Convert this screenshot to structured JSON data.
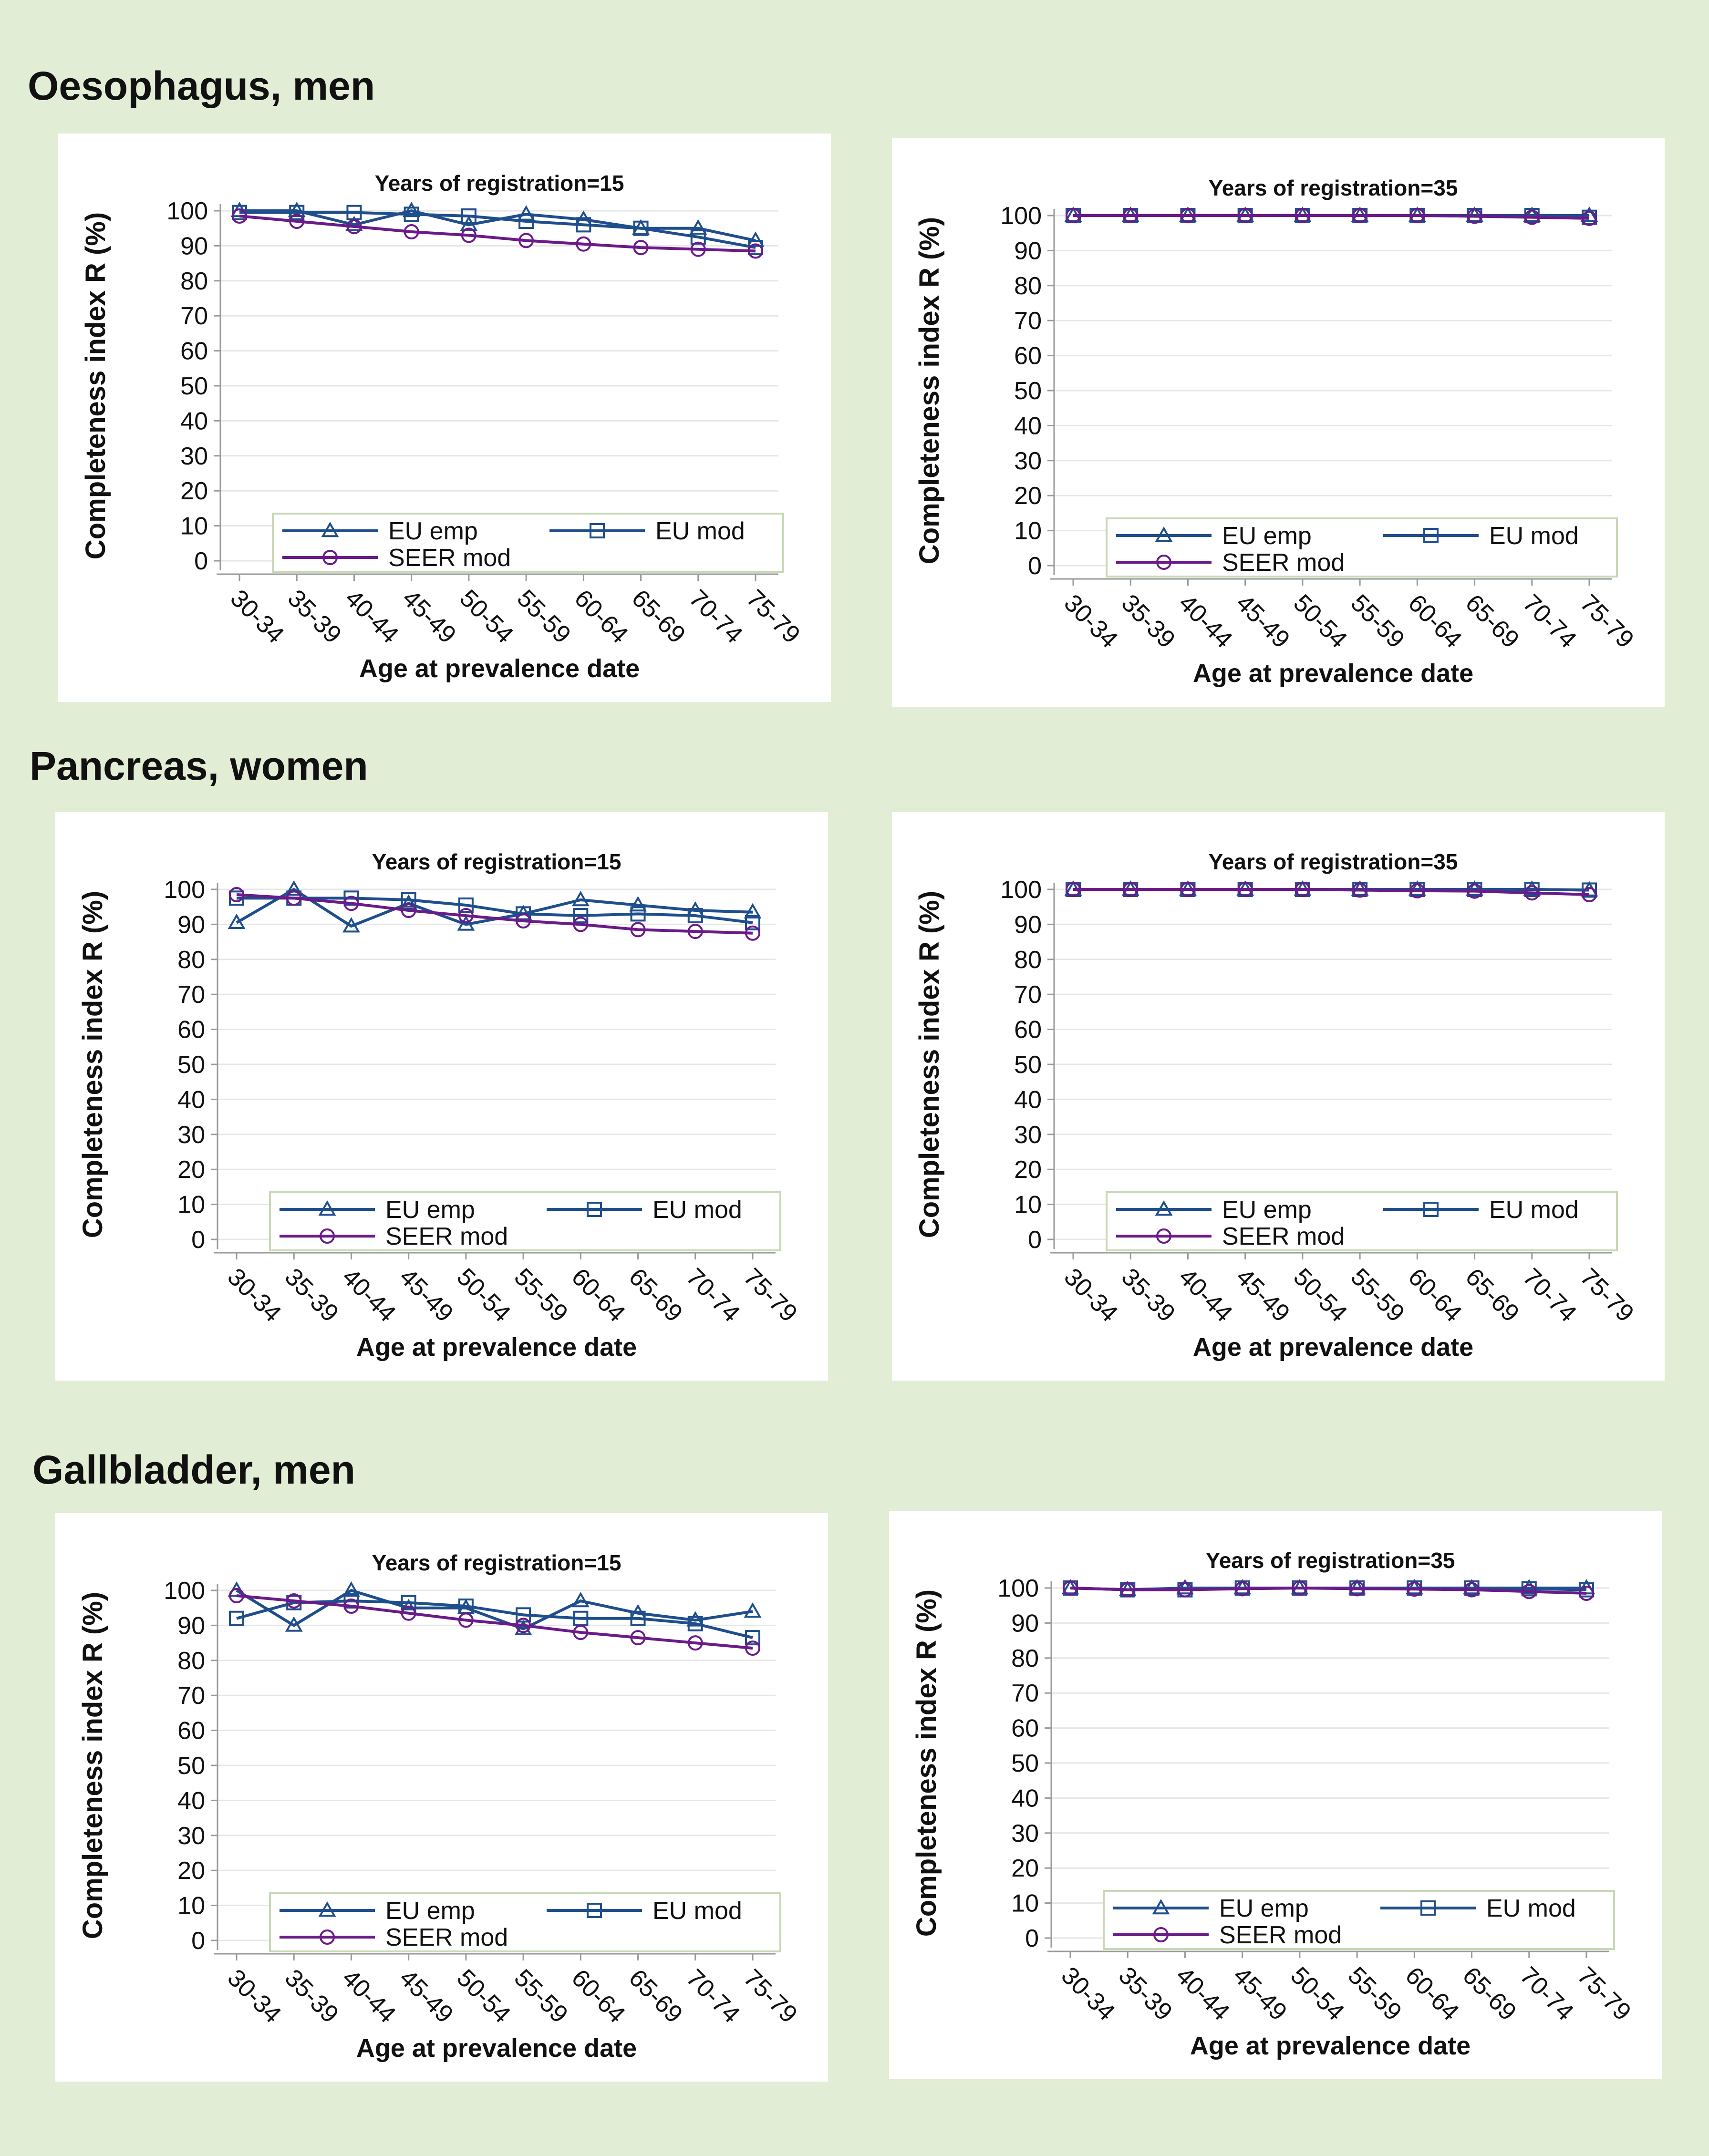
{
  "sections": [
    {
      "title": "Oesophagus, men"
    },
    {
      "title": "Pancreas, women"
    },
    {
      "title": "Gallbladder, men"
    }
  ],
  "colors": {
    "eu_emp": "#1f4e8c",
    "eu_mod": "#1f4e8c",
    "seer_mod": "#6b1a8a",
    "grid": "#e6e6e6",
    "axis": "#9a9a9a",
    "legend_border": "#c8d8b4"
  },
  "chart_data": [
    {
      "type": "line",
      "section": "Oesophagus, men",
      "title": "Years of registration=15",
      "xlabel": "Age at prevalence date",
      "ylabel": "Completeness index R (%)",
      "ylim": [
        0,
        100
      ],
      "yticks": [
        0,
        10,
        20,
        30,
        40,
        50,
        60,
        70,
        80,
        90,
        100
      ],
      "categories": [
        "30-34",
        "35-39",
        "40-44",
        "45-49",
        "50-54",
        "55-59",
        "60-64",
        "65-69",
        "70-74",
        "75-79"
      ],
      "legend": [
        "EU emp",
        "EU mod",
        "SEER mod"
      ],
      "series": [
        {
          "name": "EU emp",
          "marker": "triangle",
          "values": [
            100,
            100,
            96,
            100,
            96,
            99,
            97.5,
            95,
            95,
            91.5
          ]
        },
        {
          "name": "EU mod",
          "marker": "square",
          "values": [
            99.5,
            99.5,
            99.5,
            99,
            98.5,
            97,
            96,
            95,
            92.5,
            89.5
          ]
        },
        {
          "name": "SEER mod",
          "marker": "circle",
          "values": [
            98.5,
            97,
            95.5,
            94,
            93,
            91.5,
            90.5,
            89.5,
            89,
            88.5
          ]
        }
      ]
    },
    {
      "type": "line",
      "section": "Oesophagus, men",
      "title": "Years of registration=35",
      "xlabel": "Age at prevalence date",
      "ylabel": "Completeness index R (%)",
      "ylim": [
        0,
        100
      ],
      "yticks": [
        0,
        10,
        20,
        30,
        40,
        50,
        60,
        70,
        80,
        90,
        100
      ],
      "categories": [
        "30-34",
        "35-39",
        "40-44",
        "45-49",
        "50-54",
        "55-59",
        "60-64",
        "65-69",
        "70-74",
        "75-79"
      ],
      "legend": [
        "EU emp",
        "EU mod",
        "SEER mod"
      ],
      "series": [
        {
          "name": "EU emp",
          "marker": "triangle",
          "values": [
            100,
            100,
            100,
            100,
            100,
            100,
            100,
            100,
            100,
            100
          ]
        },
        {
          "name": "EU mod",
          "marker": "square",
          "values": [
            100,
            100,
            100,
            100,
            100,
            100,
            100,
            100,
            100,
            99.5
          ]
        },
        {
          "name": "SEER mod",
          "marker": "circle",
          "values": [
            100,
            100,
            100,
            100,
            100,
            100,
            100,
            99.8,
            99.5,
            99.2
          ]
        }
      ]
    },
    {
      "type": "line",
      "section": "Pancreas, women",
      "title": "Years of registration=15",
      "xlabel": "Age at prevalence date",
      "ylabel": "Completeness index R (%)",
      "ylim": [
        0,
        100
      ],
      "yticks": [
        0,
        10,
        20,
        30,
        40,
        50,
        60,
        70,
        80,
        90,
        100
      ],
      "categories": [
        "30-34",
        "35-39",
        "40-44",
        "45-49",
        "50-54",
        "55-59",
        "60-64",
        "65-69",
        "70-74",
        "75-79"
      ],
      "legend": [
        "EU emp",
        "EU mod",
        "SEER mod"
      ],
      "series": [
        {
          "name": "EU emp",
          "marker": "triangle",
          "values": [
            90.5,
            100,
            89.5,
            96,
            90,
            93,
            97,
            95.5,
            94,
            93.5
          ]
        },
        {
          "name": "EU mod",
          "marker": "square",
          "values": [
            97.5,
            97.5,
            97.5,
            97,
            95.5,
            93,
            92.5,
            93,
            92.5,
            90.5
          ]
        },
        {
          "name": "SEER mod",
          "marker": "circle",
          "values": [
            98.5,
            97.5,
            96,
            94,
            92.5,
            91,
            90,
            88.5,
            88,
            87.5
          ]
        }
      ]
    },
    {
      "type": "line",
      "section": "Pancreas, women",
      "title": "Years of registration=35",
      "xlabel": "Age at prevalence date",
      "ylabel": "Completeness index R (%)",
      "ylim": [
        0,
        100
      ],
      "yticks": [
        0,
        10,
        20,
        30,
        40,
        50,
        60,
        70,
        80,
        90,
        100
      ],
      "categories": [
        "30-34",
        "35-39",
        "40-44",
        "45-49",
        "50-54",
        "55-59",
        "60-64",
        "65-69",
        "70-74",
        "75-79"
      ],
      "legend": [
        "EU emp",
        "EU mod",
        "SEER mod"
      ],
      "series": [
        {
          "name": "EU emp",
          "marker": "triangle",
          "values": [
            100,
            100,
            100,
            100,
            100,
            100,
            100,
            100,
            100,
            99.8
          ]
        },
        {
          "name": "EU mod",
          "marker": "square",
          "values": [
            100,
            100,
            100,
            100,
            100,
            100,
            100,
            100,
            100,
            99.8
          ]
        },
        {
          "name": "SEER mod",
          "marker": "circle",
          "values": [
            100,
            100,
            100,
            100,
            100,
            99.8,
            99.6,
            99.5,
            99,
            98.5
          ]
        }
      ]
    },
    {
      "type": "line",
      "section": "Gallbladder, men",
      "title": "Years of registration=15",
      "xlabel": "Age at prevalence date",
      "ylabel": "Completeness index R (%)",
      "ylim": [
        0,
        100
      ],
      "yticks": [
        0,
        10,
        20,
        30,
        40,
        50,
        60,
        70,
        80,
        90,
        100
      ],
      "categories": [
        "30-34",
        "35-39",
        "40-44",
        "45-49",
        "50-54",
        "55-59",
        "60-64",
        "65-69",
        "70-74",
        "75-79"
      ],
      "legend": [
        "EU emp",
        "EU mod",
        "SEER mod"
      ],
      "series": [
        {
          "name": "EU emp",
          "marker": "triangle",
          "values": [
            100,
            90,
            100,
            95,
            95,
            89,
            97,
            93.5,
            91.5,
            94
          ]
        },
        {
          "name": "EU mod",
          "marker": "square",
          "values": [
            92,
            96.5,
            97,
            96.5,
            95.5,
            93,
            92,
            92,
            90.5,
            86.5
          ]
        },
        {
          "name": "SEER mod",
          "marker": "circle",
          "values": [
            98.5,
            97,
            95.5,
            93.5,
            91.5,
            90,
            88,
            86.5,
            85,
            83.5
          ]
        }
      ]
    },
    {
      "type": "line",
      "section": "Gallbladder, men",
      "title": "Years of registration=35",
      "xlabel": "Age at prevalence date",
      "ylabel": "Completeness index R (%)",
      "ylim": [
        0,
        100
      ],
      "yticks": [
        0,
        10,
        20,
        30,
        40,
        50,
        60,
        70,
        80,
        90,
        100
      ],
      "categories": [
        "30-34",
        "35-39",
        "40-44",
        "45-49",
        "50-54",
        "55-59",
        "60-64",
        "65-69",
        "70-74",
        "75-79"
      ],
      "legend": [
        "EU emp",
        "EU mod",
        "SEER mod"
      ],
      "series": [
        {
          "name": "EU emp",
          "marker": "triangle",
          "values": [
            100,
            99.5,
            100,
            100,
            100,
            100,
            100,
            100,
            100,
            100
          ]
        },
        {
          "name": "EU mod",
          "marker": "square",
          "values": [
            100,
            99.5,
            99.5,
            100,
            100,
            100,
            100,
            100,
            99.8,
            99.5
          ]
        },
        {
          "name": "SEER mod",
          "marker": "circle",
          "values": [
            100,
            99.5,
            99.5,
            99.8,
            100,
            99.8,
            99.7,
            99.5,
            99,
            98.5
          ]
        }
      ]
    }
  ]
}
